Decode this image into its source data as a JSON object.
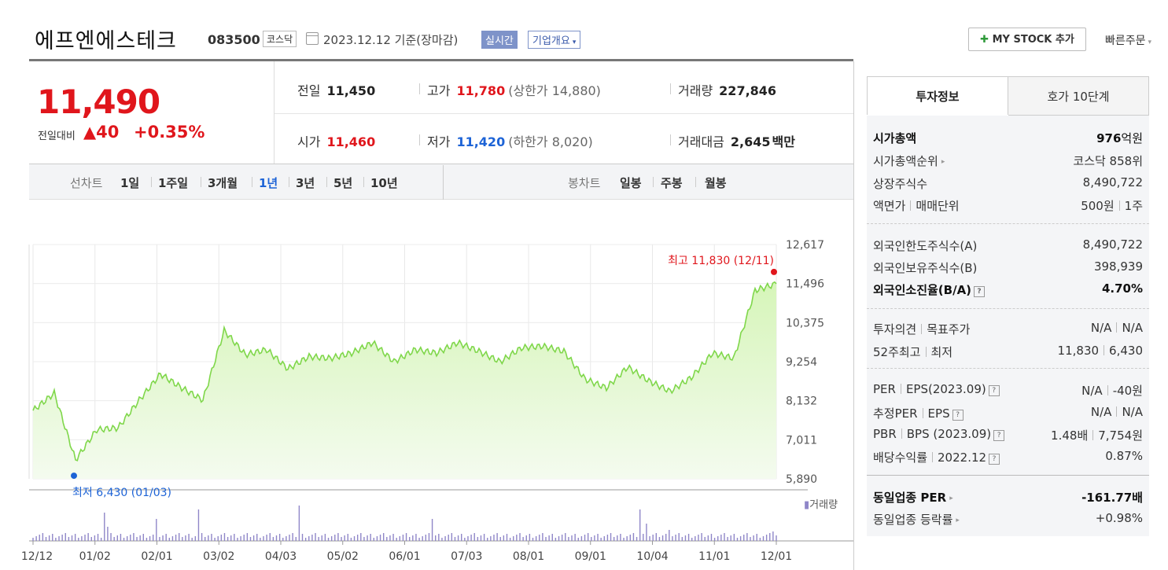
{
  "header": {
    "stock_name": "에프엔에스테크",
    "stock_code": "083500",
    "market": "코스닥",
    "date_text": "2023.12.12  기준(장마감)",
    "realtime_label": "실시간",
    "company_info_label": "기업개요",
    "my_stock_label": "MY STOCK 추가",
    "quick_order_label": "빠른주문"
  },
  "price": {
    "current": "11,490",
    "change_label": "전일대비",
    "change": "40",
    "change_pct": "+0.35%"
  },
  "quote": {
    "prev_label": "전일",
    "prev": "11,450",
    "high_label": "고가",
    "high": "11,780",
    "upper_limit": "(상한가 14,880)",
    "volume_label": "거래량",
    "volume": "227,846",
    "open_label": "시가",
    "open": "11,460",
    "low_label": "저가",
    "low": "11,420",
    "lower_limit": "(하한가 8,020)",
    "amount_label": "거래대금",
    "amount": "2,645",
    "amount_unit": "백만"
  },
  "periods": {
    "line_label": "선차트",
    "line_items": [
      "1일",
      "1주일",
      "3개월",
      "1년",
      "3년",
      "5년",
      "10년"
    ],
    "active": "1년",
    "candle_label": "봉차트",
    "candle_items": [
      "일봉",
      "주봉",
      "월봉"
    ]
  },
  "chart_data": {
    "type": "area",
    "series": [
      {
        "x": [
          "12/12",
          "12/26",
          "01/03",
          "01/16",
          "01/27",
          "02/06",
          "02/20",
          "03/02",
          "03/15",
          "03/24",
          "04/03",
          "04/14",
          "04/26",
          "05/08",
          "05/19",
          "05/30",
          "06/09",
          "06/21",
          "07/03",
          "07/12",
          "07/24",
          "08/01",
          "08/11",
          "08/24",
          "09/01",
          "09/11",
          "09/25",
          "10/04",
          "10/13",
          "10/24",
          "11/01",
          "11/10",
          "11/22",
          "12/01",
          "12/05",
          "12/11"
        ],
        "values": [
          7850,
          8350,
          6430,
          7300,
          7350,
          8150,
          8900,
          8500,
          8150,
          10150,
          9450,
          9600,
          9050,
          9400,
          9350,
          9500,
          9800,
          9250,
          9600,
          9500,
          9800,
          9550,
          9250,
          9650,
          9700,
          9550,
          8750,
          8500,
          9100,
          8700,
          8400,
          8800,
          9500,
          9350,
          11300,
          11490
        ]
      }
    ],
    "yticks": [
      "12,617",
      "11,496",
      "10,375",
      "9,254",
      "8,132",
      "7,011",
      "5,890"
    ],
    "ylim": [
      5890,
      12617
    ],
    "xticks": [
      "12/12",
      "01/02",
      "02/01",
      "03/02",
      "04/03",
      "05/02",
      "06/01",
      "07/03",
      "08/01",
      "09/01",
      "10/04",
      "11/01",
      "12/01"
    ],
    "max_annotation": {
      "text": "최고 11,830 (12/11)",
      "value": 11830
    },
    "min_annotation": {
      "text": "최저 6,430 (01/03)",
      "value": 6430
    },
    "volume_legend": "거래량",
    "fill_color": "#d6f5b9",
    "line_color": "#7fd74a",
    "volume_color": "#8f86c8"
  },
  "side": {
    "tab_active": "투자정보",
    "tab_other": "호가 10단계",
    "g1": [
      {
        "k": "시가총액",
        "v1": "976",
        "unit": "억원"
      },
      {
        "k": "시가총액순위",
        "v": "코스닥 858위"
      },
      {
        "k": "상장주식수",
        "v": "8,490,722"
      },
      {
        "k1": "액면가",
        "k2": "매매단위",
        "v1": "500원",
        "v2": "1주"
      }
    ],
    "g2": [
      {
        "k": "외국인한도주식수(A)",
        "v": "8,490,722"
      },
      {
        "k": "외국인보유주식수(B)",
        "v": "398,939"
      },
      {
        "k": "외국인소진율(B/A)",
        "v": "4.70%"
      }
    ],
    "g3": [
      {
        "k1": "투자의견",
        "k2": "목표주가",
        "v1": "N/A",
        "v2": "N/A"
      },
      {
        "k1": "52주최고",
        "k2": "최저",
        "v1": "11,830",
        "v2": "6,430"
      }
    ],
    "g4": [
      {
        "k1": "PER",
        "k2": "EPS(2023.09)",
        "v1": "N/A",
        "v2": "-40원"
      },
      {
        "k1": "추정PER",
        "k2": "EPS",
        "v1": "N/A",
        "v2": "N/A"
      },
      {
        "k1": "PBR",
        "k2": "BPS (2023.09)",
        "v1": "1.48배",
        "v2": "7,754원"
      },
      {
        "k1": "배당수익률",
        "k2": "2022.12",
        "v": "0.87%"
      }
    ],
    "g5": [
      {
        "k": "동일업종 PER",
        "v": "-161.77배"
      },
      {
        "k": "동일업종 등락률",
        "v": "+0.98%"
      }
    ],
    "help_mark": "?"
  }
}
